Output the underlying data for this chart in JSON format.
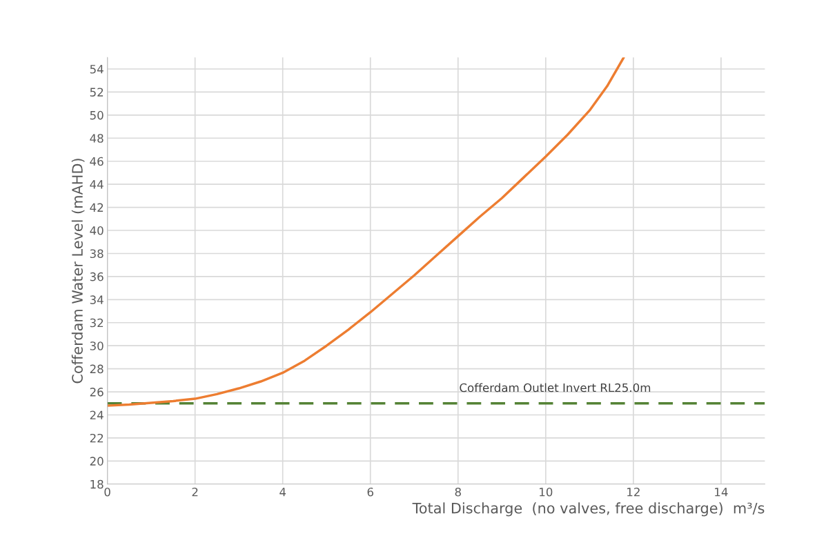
{
  "chart_data": {
    "type": "line",
    "xlabel": "Total Discharge  (no valves, free discharge)  m³/s",
    "ylabel": "Cofferdam Water Level (mAHD)",
    "series": [
      {
        "color": "#ed7d31",
        "x": [
          0,
          0.5,
          1,
          1.5,
          2,
          2.5,
          3,
          3.5,
          4,
          4.5,
          5,
          5.5,
          6,
          6.5,
          7,
          7.5,
          8,
          8.5,
          9,
          9.5,
          10,
          10.5,
          11,
          11.4,
          11.78
        ],
        "values": [
          24.8,
          24.9,
          25.05,
          25.2,
          25.4,
          25.8,
          26.3,
          26.9,
          27.65,
          28.7,
          30.0,
          31.4,
          32.9,
          34.5,
          36.1,
          37.8,
          39.5,
          41.2,
          42.8,
          44.6,
          46.4,
          48.3,
          50.4,
          52.5,
          55
        ]
      }
    ],
    "ref_lines": [
      {
        "axis": "y",
        "value": 25,
        "label": "Cofferdam Outlet Invert RL25.0m",
        "color": "#548235",
        "line_style": "dashed"
      }
    ],
    "xlim": [
      0,
      15
    ],
    "ylim": [
      18,
      55
    ],
    "xticks": [
      0,
      2,
      4,
      6,
      8,
      10,
      12,
      14
    ],
    "yticks": [
      18,
      20,
      22,
      24,
      26,
      28,
      30,
      32,
      34,
      36,
      38,
      40,
      42,
      44,
      46,
      48,
      50,
      52,
      54
    ],
    "grid": true,
    "marker": "none",
    "line_style": "solid"
  }
}
